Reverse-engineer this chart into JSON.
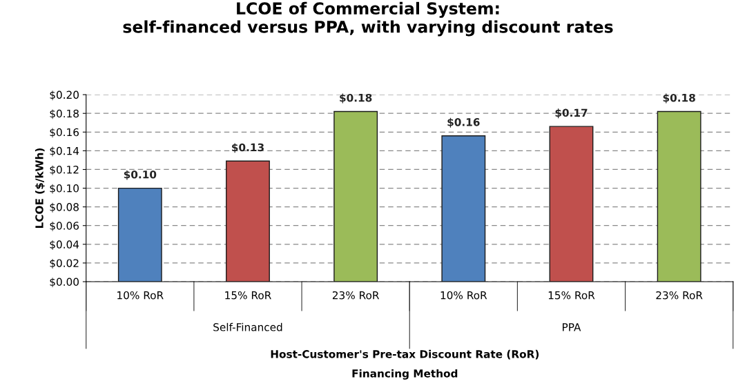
{
  "chart_data": {
    "type": "bar",
    "title": "LCOE of Commercial System:\nself-financed versus PPA, with varying discount rates",
    "categories": [
      "10% RoR",
      "15% RoR",
      "23% RoR",
      "10% RoR",
      "15% RoR",
      "23% RoR"
    ],
    "values": [
      0.1,
      0.129,
      0.182,
      0.156,
      0.166,
      0.182
    ],
    "colors": [
      "#4f81bd",
      "#c0504d",
      "#9bbb59",
      "#4f81bd",
      "#c0504d",
      "#9bbb59"
    ],
    "value_labels": [
      "$0.10",
      "$0.13",
      "$0.18",
      "$0.16",
      "$0.17",
      "$0.18"
    ],
    "annotations": [
      "Self-Financed",
      "PPA",
      "Host-Customer's Pre-tax Discount Rate (RoR)",
      "Financing Method"
    ],
    "ylabel": "LCOE ($/kWh)",
    "ylim": [
      0,
      0.2
    ],
    "yticks": [
      {
        "value": 0,
        "label": "$0.00"
      },
      {
        "value": 0.02,
        "label": "$0.02"
      },
      {
        "value": 0.04,
        "label": "$0.04"
      },
      {
        "value": 0.06,
        "label": "$0.06"
      },
      {
        "value": 0.08,
        "label": "$0.08"
      },
      {
        "value": 0.1,
        "label": "$0.10"
      },
      {
        "value": 0.12,
        "label": "$0.12"
      },
      {
        "value": 0.14,
        "label": "$0.14"
      },
      {
        "value": 0.16,
        "label": "$0.16"
      },
      {
        "value": 0.18,
        "label": "$0.18"
      },
      {
        "value": 0.2,
        "label": "$0.20"
      }
    ],
    "grid": "y",
    "legend": false
  }
}
